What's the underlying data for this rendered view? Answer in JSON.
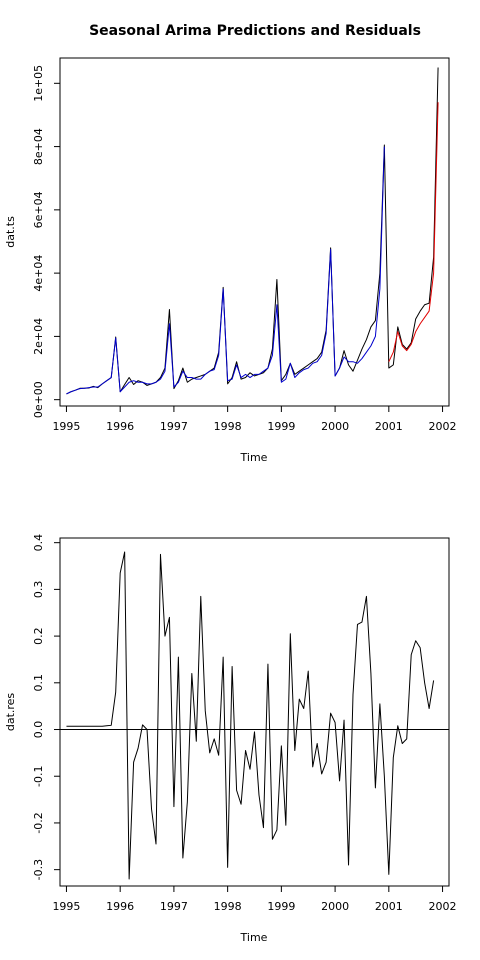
{
  "figure": {
    "title": "Seasonal Arima Predictions and Residuals"
  },
  "chart_data": [
    {
      "type": "line",
      "xlabel": "Time",
      "ylabel": "dat.ts",
      "xlim": [
        1994.88,
        2002.12
      ],
      "ylim": [
        -2000,
        108000
      ],
      "xticks": [
        1995,
        1996,
        1997,
        1998,
        1999,
        2000,
        2001,
        2002
      ],
      "xtick_labels": [
        "1995",
        "1996",
        "1997",
        "1998",
        "1999",
        "2000",
        "2001",
        "2002"
      ],
      "yticks": [
        0,
        20000,
        40000,
        60000,
        80000,
        100000
      ],
      "ytick_labels": [
        "0e+00",
        "2e+04",
        "4e+04",
        "6e+04",
        "8e+04",
        "1e+05"
      ],
      "grid": false,
      "series": [
        {
          "color": "#000000",
          "x_start": 1995.0,
          "x_step": 0.08333333,
          "values": [
            1800,
            2500,
            3000,
            3600,
            3600,
            3700,
            4200,
            3800,
            5000,
            6000,
            7000,
            19800,
            2500,
            4800,
            7000,
            4800,
            6000,
            5500,
            4500,
            5000,
            5500,
            7000,
            10000,
            28500,
            3500,
            6000,
            10000,
            5500,
            6500,
            7000,
            7500,
            8000,
            9000,
            10000,
            15000,
            35500,
            5000,
            7000,
            12000,
            6500,
            7000,
            8500,
            7500,
            8000,
            8500,
            10000,
            16000,
            38000,
            6000,
            8000,
            11500,
            8000,
            9000,
            10000,
            11000,
            12000,
            13000,
            15000,
            22000,
            48000,
            7500,
            10000,
            15500,
            11000,
            9000,
            12500,
            16000,
            19000,
            23000,
            25000,
            40000,
            80500,
            10000,
            11000,
            23000,
            17500,
            16000,
            18000,
            25500,
            28000,
            30000,
            30500,
            45000,
            105000
          ]
        },
        {
          "color": "#0000cc",
          "x_start": 1995.0,
          "x_step": 0.08333333,
          "values": [
            1800,
            2500,
            3000,
            3500,
            3600,
            3800,
            4000,
            4000,
            5000,
            6000,
            7000,
            19500,
            2500,
            4000,
            5500,
            6000,
            5500,
            5500,
            5000,
            5000,
            5500,
            6500,
            9000,
            24000,
            4000,
            5500,
            9000,
            7000,
            7000,
            6500,
            6500,
            8000,
            9000,
            9500,
            14000,
            35000,
            6000,
            6500,
            11000,
            7000,
            8000,
            7000,
            8000,
            8000,
            9000,
            10000,
            14000,
            30000,
            5500,
            6500,
            11500,
            7000,
            8500,
            9500,
            10000,
            11500,
            12000,
            14000,
            21000,
            47500,
            7500,
            10000,
            13500,
            12000,
            12000,
            11500,
            13000,
            15000,
            17000,
            20000,
            35000,
            80000
          ]
        },
        {
          "color": "#e00000",
          "x_start": 2001.0,
          "x_step": 0.08333333,
          "values": [
            12000,
            15000,
            21500,
            17000,
            15500,
            17500,
            21500,
            24000,
            26000,
            28000,
            40000,
            94000
          ]
        }
      ]
    },
    {
      "type": "line",
      "xlabel": "Time",
      "ylabel": "dat.res",
      "xlim": [
        1994.88,
        2002.12
      ],
      "ylim": [
        -0.335,
        0.41
      ],
      "xticks": [
        1995,
        1996,
        1997,
        1998,
        1999,
        2000,
        2001,
        2002
      ],
      "xtick_labels": [
        "1995",
        "1996",
        "1997",
        "1998",
        "1999",
        "2000",
        "2001",
        "2002"
      ],
      "yticks": [
        -0.3,
        -0.2,
        -0.1,
        0.0,
        0.1,
        0.2,
        0.3,
        0.4
      ],
      "ytick_labels": [
        "-0.3",
        "-0.2",
        "-0.1",
        "0.0",
        "0.1",
        "0.2",
        "0.3",
        "0.4"
      ],
      "hline": 0.0,
      "grid": false,
      "series": [
        {
          "color": "#000000",
          "x_start": 1995.0,
          "x_step": 0.08333333,
          "values": [
            0.007,
            0.007,
            0.007,
            0.007,
            0.007,
            0.007,
            0.007,
            0.007,
            0.007,
            0.008,
            0.009,
            0.08,
            0.335,
            0.38,
            -0.32,
            -0.07,
            -0.04,
            0.01,
            0.0,
            -0.17,
            -0.245,
            0.375,
            0.2,
            0.24,
            -0.165,
            0.155,
            -0.275,
            -0.155,
            0.12,
            -0.025,
            0.285,
            0.04,
            -0.05,
            -0.02,
            -0.055,
            0.155,
            -0.295,
            0.135,
            -0.13,
            -0.16,
            -0.045,
            -0.085,
            -0.005,
            -0.14,
            -0.21,
            0.14,
            -0.235,
            -0.215,
            -0.035,
            -0.205,
            0.205,
            -0.045,
            0.065,
            0.045,
            0.125,
            -0.08,
            -0.03,
            -0.095,
            -0.07,
            0.035,
            0.015,
            -0.11,
            0.02,
            -0.29,
            0.075,
            0.225,
            0.23,
            0.285,
            0.12,
            -0.125,
            0.055,
            -0.1,
            -0.31,
            -0.06,
            0.008,
            -0.03,
            -0.02,
            0.16,
            0.19,
            0.175,
            0.1,
            0.045,
            0.105
          ]
        }
      ]
    }
  ]
}
